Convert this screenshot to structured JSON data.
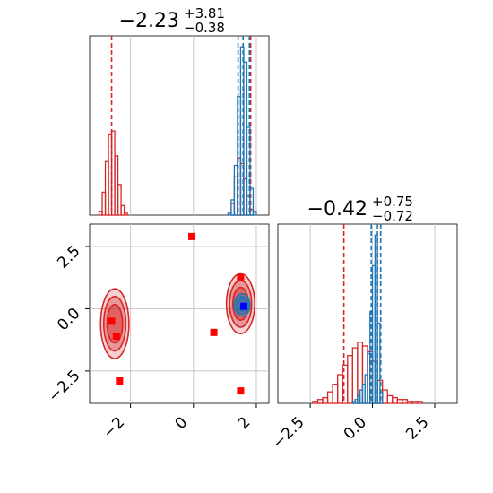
{
  "figure": {
    "type": "corner_plot",
    "colors": {
      "posterior_a": "#d62728",
      "posterior_b": "#1f77b4",
      "points": "#ff0000",
      "truth": "#0000ff",
      "grid": "#c8c8c8"
    }
  },
  "chart_data": [
    {
      "panel": "marginal_param1",
      "type": "histogram",
      "title": {
        "median": "−2.23",
        "upper": "+3.81",
        "lower": "−0.38"
      },
      "xlim": [
        -3.3,
        2.4
      ],
      "grid_x": [
        -2,
        0,
        2
      ],
      "series": [
        {
          "color": "#d62728",
          "bins": [
            -2.95,
            -2.85,
            -2.75,
            -2.65,
            -2.55,
            -2.45,
            -2.35,
            -2.25,
            -2.15,
            1.25,
            1.35,
            1.45,
            1.55,
            1.65,
            1.75,
            1.85
          ],
          "heights": [
            0.02,
            0.12,
            0.28,
            0.42,
            0.44,
            0.31,
            0.16,
            0.05,
            0.01,
            0.06,
            0.2,
            0.3,
            0.27,
            0.19,
            0.1,
            0.03
          ],
          "quantiles": [
            -2.6,
            1.58,
            1.82
          ]
        },
        {
          "color": "#1f77b4",
          "bins": [
            1.15,
            1.25,
            1.35,
            1.45,
            1.55,
            1.65,
            1.75,
            1.85,
            1.95
          ],
          "heights": [
            0.01,
            0.08,
            0.26,
            0.62,
            0.88,
            0.8,
            0.46,
            0.14,
            0.02
          ],
          "quantiles": [
            1.42,
            1.58,
            1.78
          ]
        }
      ]
    },
    {
      "panel": "joint_param1_param2",
      "type": "scatter",
      "xlim": [
        -3.3,
        2.4
      ],
      "ylim": [
        -3.8,
        3.4
      ],
      "x_ticks": [
        "−2",
        "0",
        "2"
      ],
      "y_ticks": [
        "−2.5",
        "0.0",
        "2.5"
      ],
      "x_tick_values": [
        -2,
        0,
        2
      ],
      "y_tick_values": [
        -2.5,
        0.0,
        2.5
      ],
      "contours": [
        {
          "color": "#d62728",
          "center": [
            -2.5,
            -0.6
          ],
          "spread": [
            0.45,
            1.4
          ]
        },
        {
          "color": "#d62728",
          "center": [
            1.5,
            0.2
          ],
          "spread": [
            0.45,
            1.2
          ]
        },
        {
          "color": "#1f77b4",
          "center": [
            1.55,
            0.15
          ],
          "spread": [
            0.25,
            0.45
          ]
        }
      ],
      "points": [
        {
          "x": -0.05,
          "y": 2.9
        },
        {
          "x": -2.6,
          "y": -0.5
        },
        {
          "x": -2.45,
          "y": -1.1
        },
        {
          "x": -2.35,
          "y": -2.9
        },
        {
          "x": 0.65,
          "y": -0.95
        },
        {
          "x": 1.5,
          "y": 1.25
        },
        {
          "x": 1.5,
          "y": -3.3
        }
      ],
      "truth": {
        "x": 1.6,
        "y": 0.1
      }
    },
    {
      "panel": "marginal_param2",
      "type": "histogram",
      "title": {
        "median": "−0.42",
        "upper": "+0.75",
        "lower": "−0.72"
      },
      "xlim": [
        -3.8,
        3.4
      ],
      "x_ticks": [
        "−2.5",
        "0.0",
        "2.5"
      ],
      "x_tick_values": [
        -2.5,
        0.0,
        2.5
      ],
      "series": [
        {
          "color": "#d62728",
          "bins": [
            -2.3,
            -2.1,
            -1.9,
            -1.7,
            -1.5,
            -1.3,
            -1.1,
            -0.9,
            -0.7,
            -0.5,
            -0.3,
            -0.1,
            0.1,
            0.3,
            0.5,
            0.7,
            0.9,
            1.1,
            1.3,
            1.5,
            1.7,
            1.9
          ],
          "heights": [
            0.01,
            0.02,
            0.03,
            0.06,
            0.1,
            0.15,
            0.2,
            0.25,
            0.29,
            0.32,
            0.3,
            0.27,
            0.22,
            0.12,
            0.07,
            0.04,
            0.03,
            0.02,
            0.02,
            0.01,
            0.01,
            0.01
          ],
          "quantiles": [
            -1.15,
            0.33
          ]
        },
        {
          "color": "#1f77b4",
          "bins": [
            -0.75,
            -0.65,
            -0.55,
            -0.45,
            -0.35,
            -0.25,
            -0.15,
            -0.05,
            0.05,
            0.15,
            0.25,
            0.35
          ],
          "heights": [
            0.01,
            0.02,
            0.04,
            0.07,
            0.1,
            0.15,
            0.26,
            0.48,
            0.72,
            0.88,
            0.42,
            0.06
          ],
          "quantiles": [
            -0.05,
            0.2,
            0.33
          ]
        }
      ]
    }
  ]
}
